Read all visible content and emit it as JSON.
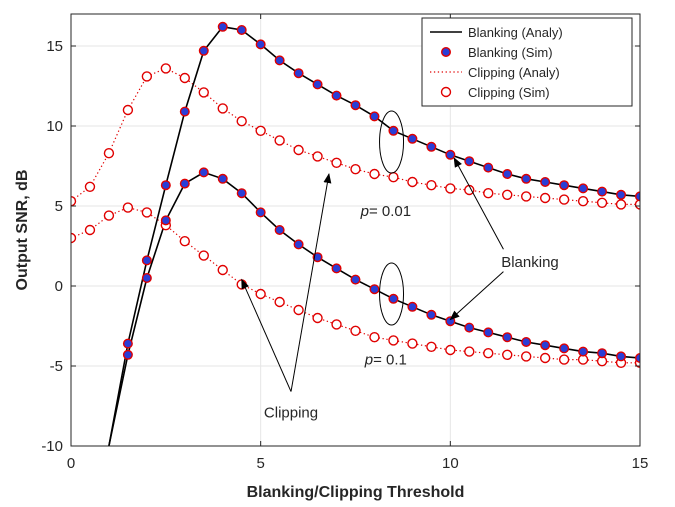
{
  "chart_data": {
    "type": "line",
    "xlabel": "Blanking/Clipping Threshold",
    "ylabel": "Output SNR, dB",
    "xlim": [
      0,
      15
    ],
    "ylim": [
      -10,
      17
    ],
    "xticks": [
      0,
      5,
      10,
      15
    ],
    "yticks": [
      -10,
      -5,
      0,
      5,
      10,
      15
    ],
    "xtick_labels": [
      "0",
      "5",
      "10",
      "15"
    ],
    "ytick_labels": [
      "-10",
      "-5",
      "0",
      "5",
      "10",
      "15"
    ],
    "grid": true,
    "legend_position": "top-right",
    "series": [
      {
        "name": "Blanking (Analy)",
        "group": "p=0.01",
        "style": "line",
        "color": "#000000",
        "x": [
          1,
          1.5,
          2,
          2.5,
          3,
          3.5,
          4,
          4.5,
          5,
          5.5,
          6,
          6.5,
          7,
          7.5,
          8,
          8.5,
          9,
          9.5,
          10,
          10.5,
          11,
          11.5,
          12,
          12.5,
          13,
          13.5,
          14,
          14.5,
          15
        ],
        "y": [
          -10,
          -3.6,
          1.6,
          6.3,
          10.9,
          14.7,
          16.2,
          16.0,
          15.1,
          14.1,
          13.3,
          12.6,
          11.9,
          11.3,
          10.6,
          9.7,
          9.2,
          8.7,
          8.2,
          7.8,
          7.4,
          7.0,
          6.7,
          6.5,
          6.3,
          6.1,
          5.9,
          5.7,
          5.6
        ]
      },
      {
        "name": "Blanking (Sim)",
        "group": "p=0.01",
        "style": "marker",
        "color": "#2a3ed6",
        "edge": "#e00000",
        "x": [
          1.5,
          2,
          2.5,
          3,
          3.5,
          4,
          4.5,
          5,
          5.5,
          6,
          6.5,
          7,
          7.5,
          8,
          8.5,
          9,
          9.5,
          10,
          10.5,
          11,
          11.5,
          12,
          12.5,
          13,
          13.5,
          14,
          14.5,
          15
        ],
        "y": [
          -3.6,
          1.6,
          6.3,
          10.9,
          14.7,
          16.2,
          16.0,
          15.1,
          14.1,
          13.3,
          12.6,
          11.9,
          11.3,
          10.6,
          9.7,
          9.2,
          8.7,
          8.2,
          7.8,
          7.4,
          7.0,
          6.7,
          6.5,
          6.3,
          6.1,
          5.9,
          5.7,
          5.6
        ]
      },
      {
        "name": "Clipping (Analy)",
        "group": "p=0.01",
        "style": "dotted",
        "color": "#e00000",
        "x": [
          0,
          0.5,
          1,
          1.5,
          2,
          2.5,
          3,
          3.5,
          4,
          4.5,
          5,
          5.5,
          6,
          6.5,
          7,
          7.5,
          8,
          8.5,
          9,
          9.5,
          10,
          10.5,
          11,
          11.5,
          12,
          12.5,
          13,
          13.5,
          14,
          14.5,
          15
        ],
        "y": [
          5.3,
          6.2,
          8.3,
          11.0,
          13.1,
          13.6,
          13.0,
          12.1,
          11.1,
          10.3,
          9.7,
          9.1,
          8.5,
          8.1,
          7.7,
          7.3,
          7.0,
          6.8,
          6.5,
          6.3,
          6.1,
          6.0,
          5.8,
          5.7,
          5.6,
          5.5,
          5.4,
          5.3,
          5.2,
          5.1,
          5.1
        ]
      },
      {
        "name": "Clipping (Sim)",
        "group": "p=0.01",
        "style": "open-marker",
        "color": "#e00000",
        "x": [
          0,
          0.5,
          1,
          1.5,
          2,
          2.5,
          3,
          3.5,
          4,
          4.5,
          5,
          5.5,
          6,
          6.5,
          7,
          7.5,
          8,
          8.5,
          9,
          9.5,
          10,
          10.5,
          11,
          11.5,
          12,
          12.5,
          13,
          13.5,
          14,
          14.5,
          15
        ],
        "y": [
          5.3,
          6.2,
          8.3,
          11.0,
          13.1,
          13.6,
          13.0,
          12.1,
          11.1,
          10.3,
          9.7,
          9.1,
          8.5,
          8.1,
          7.7,
          7.3,
          7.0,
          6.8,
          6.5,
          6.3,
          6.1,
          6.0,
          5.8,
          5.7,
          5.6,
          5.5,
          5.4,
          5.3,
          5.2,
          5.1,
          5.1
        ]
      },
      {
        "group": "p=0.1",
        "style": "line",
        "color": "#000000",
        "x": [
          1,
          1.5,
          2,
          2.5,
          3,
          3.5,
          4,
          4.5,
          5,
          5.5,
          6,
          6.5,
          7,
          7.5,
          8,
          8.5,
          9,
          9.5,
          10,
          10.5,
          11,
          11.5,
          12,
          12.5,
          13,
          13.5,
          14,
          14.5,
          15
        ],
        "y": [
          -10,
          -4.3,
          0.5,
          4.1,
          6.4,
          7.1,
          6.7,
          5.8,
          4.6,
          3.5,
          2.6,
          1.8,
          1.1,
          0.4,
          -0.2,
          -0.8,
          -1.3,
          -1.8,
          -2.2,
          -2.6,
          -2.9,
          -3.2,
          -3.5,
          -3.7,
          -3.9,
          -4.1,
          -4.2,
          -4.4,
          -4.5
        ]
      },
      {
        "group": "p=0.1",
        "style": "marker",
        "color": "#2a3ed6",
        "edge": "#e00000",
        "x": [
          1.5,
          2,
          2.5,
          3,
          3.5,
          4,
          4.5,
          5,
          5.5,
          6,
          6.5,
          7,
          7.5,
          8,
          8.5,
          9,
          9.5,
          10,
          10.5,
          11,
          11.5,
          12,
          12.5,
          13,
          13.5,
          14,
          14.5,
          15
        ],
        "y": [
          -4.3,
          0.5,
          4.1,
          6.4,
          7.1,
          6.7,
          5.8,
          4.6,
          3.5,
          2.6,
          1.8,
          1.1,
          0.4,
          -0.2,
          -0.8,
          -1.3,
          -1.8,
          -2.2,
          -2.6,
          -2.9,
          -3.2,
          -3.5,
          -3.7,
          -3.9,
          -4.1,
          -4.2,
          -4.4,
          -4.5
        ]
      },
      {
        "group": "p=0.1",
        "style": "dotted",
        "color": "#e00000",
        "x": [
          0,
          0.5,
          1,
          1.5,
          2,
          2.5,
          3,
          3.5,
          4,
          4.5,
          5,
          5.5,
          6,
          6.5,
          7,
          7.5,
          8,
          8.5,
          9,
          9.5,
          10,
          10.5,
          11,
          11.5,
          12,
          12.5,
          13,
          13.5,
          14,
          14.5,
          15
        ],
        "y": [
          3.0,
          3.5,
          4.4,
          4.9,
          4.6,
          3.8,
          2.8,
          1.9,
          1.0,
          0.1,
          -0.5,
          -1.0,
          -1.5,
          -2.0,
          -2.4,
          -2.8,
          -3.2,
          -3.4,
          -3.6,
          -3.8,
          -4.0,
          -4.1,
          -4.2,
          -4.3,
          -4.4,
          -4.5,
          -4.6,
          -4.6,
          -4.7,
          -4.8,
          -4.8
        ]
      },
      {
        "group": "p=0.1",
        "style": "open-marker",
        "color": "#e00000",
        "x": [
          0,
          0.5,
          1,
          1.5,
          2,
          2.5,
          3,
          3.5,
          4,
          4.5,
          5,
          5.5,
          6,
          6.5,
          7,
          7.5,
          8,
          8.5,
          9,
          9.5,
          10,
          10.5,
          11,
          11.5,
          12,
          12.5,
          13,
          13.5,
          14,
          14.5,
          15
        ],
        "y": [
          3.0,
          3.5,
          4.4,
          4.9,
          4.6,
          3.8,
          2.8,
          1.9,
          1.0,
          0.1,
          -0.5,
          -1.0,
          -1.5,
          -2.0,
          -2.4,
          -2.8,
          -3.2,
          -3.4,
          -3.6,
          -3.8,
          -4.0,
          -4.1,
          -4.2,
          -4.3,
          -4.4,
          -4.5,
          -4.6,
          -4.6,
          -4.7,
          -4.8,
          -4.8
        ]
      }
    ],
    "annotations": [
      {
        "text": "p",
        "suffix": "= 0.01",
        "x": 8.3,
        "y": 4.7
      },
      {
        "text": "p",
        "suffix": "= 0.1",
        "x": 8.3,
        "y": -4.6
      },
      {
        "text": "Blanking",
        "x": 12.1,
        "y": 1.5
      },
      {
        "text": "Clipping",
        "x": 5.8,
        "y": -7.9
      }
    ]
  }
}
